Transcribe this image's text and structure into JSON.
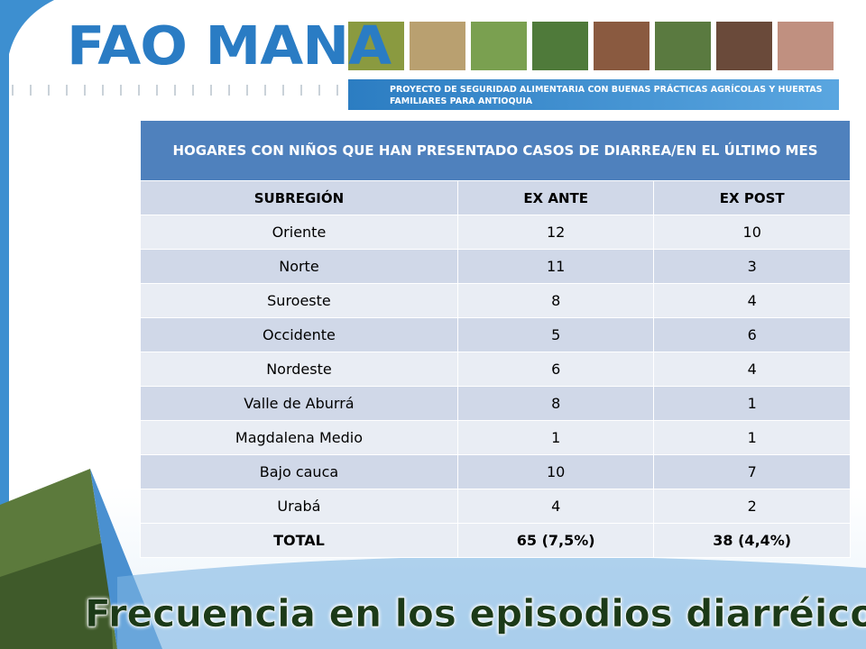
{
  "header": {
    "logo": "FAO MANA",
    "subtitle": "PROYECTO DE SEGURIDAD ALIMENTARIA CON BUENAS PRÁCTICAS AGRÍCOLAS Y HUERTAS FAMILIARES PARA ANTIOQUIA"
  },
  "table": {
    "title": "HOGARES CON NIÑOS QUE HAN PRESENTADO CASOS DE DIARREA/EN EL ÚLTIMO MES",
    "columns": [
      "SUBREGIÓN",
      "EX ANTE",
      "EX POST"
    ],
    "rows": [
      [
        "Oriente",
        12,
        10
      ],
      [
        "Norte",
        11,
        3
      ],
      [
        "Suroeste",
        8,
        4
      ],
      [
        "Occidente",
        5,
        6
      ],
      [
        "Nordeste",
        6,
        4
      ],
      [
        "Valle de Aburrá",
        8,
        1
      ],
      [
        "Magdalena Medio",
        1,
        1
      ],
      [
        "Bajo cauca",
        10,
        7
      ],
      [
        "Urabá",
        4,
        2
      ],
      [
        "TOTAL",
        "65   (7,5%)",
        "38   (4,4%)"
      ]
    ]
  },
  "footer": {
    "title": "Frecuencia en los episodios diarréicos"
  }
}
